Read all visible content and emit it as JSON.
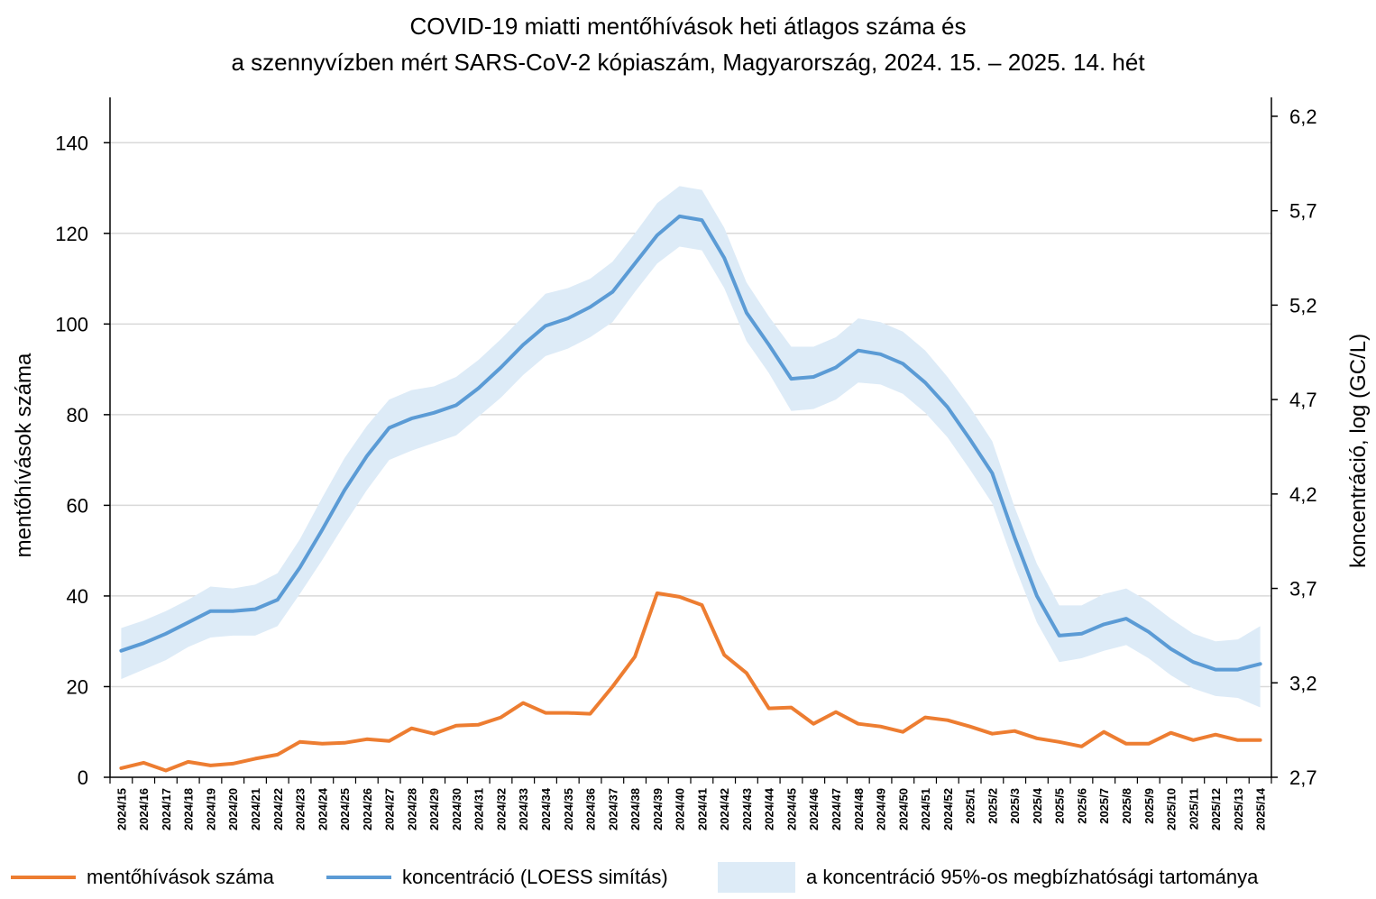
{
  "title_line1": "COVID-19 miatti mentőhívások heti átlagos száma és",
  "title_line2": "a szennyvízben mért SARS-CoV-2 kópiaszám, Magyarország, 2024. 15. – 2025. 14. hét",
  "colors": {
    "calls": "#ED7D31",
    "concentration": "#5B9BD5",
    "band": "#DDEBF7",
    "grid": "#D9D9D9",
    "axis": "#000000"
  },
  "chart_data": {
    "type": "line",
    "x": [
      "2024/15",
      "2024/16",
      "2024/17",
      "2024/18",
      "2024/19",
      "2024/20",
      "2024/21",
      "2024/22",
      "2024/23",
      "2024/24",
      "2024/25",
      "2024/26",
      "2024/27",
      "2024/28",
      "2024/29",
      "2024/30",
      "2024/31",
      "2024/32",
      "2024/33",
      "2024/34",
      "2024/35",
      "2024/36",
      "2024/37",
      "2024/38",
      "2024/39",
      "2024/40",
      "2024/41",
      "2024/42",
      "2024/43",
      "2024/44",
      "2024/45",
      "2024/46",
      "2024/47",
      "2024/48",
      "2024/49",
      "2024/50",
      "2024/51",
      "2024/52",
      "2025/1",
      "2025/2",
      "2025/3",
      "2025/4",
      "2025/5",
      "2025/6",
      "2025/7",
      "2025/8",
      "2025/9",
      "2025/10",
      "2025/11",
      "2025/12",
      "2025/13",
      "2025/14"
    ],
    "ylabel": "mentőhívások száma",
    "y2label": "koncentráció, log (GC/L)",
    "ylim": [
      0,
      150
    ],
    "yticks": [
      "0",
      "20",
      "40",
      "60",
      "80",
      "100",
      "120",
      "140"
    ],
    "y2lim": [
      2.7,
      6.3
    ],
    "y2ticks": [
      "2,7",
      "3,2",
      "3,7",
      "4,2",
      "4,7",
      "5,2",
      "5,7",
      "6,2"
    ],
    "grid": true,
    "legend_position": "bottom",
    "series": [
      {
        "name": "mentőhívások száma",
        "axis": "left",
        "values": [
          2.0,
          3.2,
          1.5,
          3.4,
          2.6,
          3.0,
          4.1,
          5.0,
          7.8,
          7.4,
          7.6,
          8.4,
          8.0,
          10.8,
          9.6,
          11.4,
          11.6,
          13.2,
          16.4,
          14.2,
          14.2,
          14.0,
          20.0,
          26.6,
          40.6,
          39.8,
          38.0,
          27.0,
          23.0,
          15.2,
          15.4,
          11.8,
          14.4,
          11.8,
          11.2,
          10.0,
          13.2,
          12.6,
          11.2,
          9.6,
          10.2,
          8.6,
          7.8,
          6.8,
          10.0,
          7.4,
          7.4,
          9.8,
          8.2,
          9.4,
          8.2,
          8.2
        ]
      },
      {
        "name": "koncentráció (LOESS simítás)",
        "axis": "right",
        "values": [
          3.37,
          3.41,
          3.46,
          3.52,
          3.58,
          3.58,
          3.59,
          3.64,
          3.81,
          4.01,
          4.22,
          4.4,
          4.55,
          4.6,
          4.63,
          4.67,
          4.76,
          4.87,
          4.99,
          5.09,
          5.13,
          5.19,
          5.27,
          5.42,
          5.57,
          5.67,
          5.65,
          5.45,
          5.16,
          4.99,
          4.81,
          4.82,
          4.87,
          4.96,
          4.94,
          4.89,
          4.79,
          4.66,
          4.49,
          4.31,
          3.97,
          3.66,
          3.45,
          3.46,
          3.51,
          3.54,
          3.47,
          3.38,
          3.31,
          3.27,
          3.27,
          3.3
        ]
      },
      {
        "name": "a koncentráció 95%-os megbízhatósági tartománya",
        "axis": "right",
        "upper": [
          3.49,
          3.53,
          3.58,
          3.64,
          3.71,
          3.7,
          3.72,
          3.78,
          3.96,
          4.18,
          4.39,
          4.56,
          4.7,
          4.75,
          4.77,
          4.82,
          4.91,
          5.02,
          5.14,
          5.26,
          5.29,
          5.34,
          5.43,
          5.58,
          5.74,
          5.83,
          5.81,
          5.61,
          5.32,
          5.14,
          4.98,
          4.98,
          5.03,
          5.13,
          5.11,
          5.06,
          4.96,
          4.82,
          4.66,
          4.48,
          4.13,
          3.83,
          3.61,
          3.61,
          3.67,
          3.7,
          3.63,
          3.54,
          3.46,
          3.42,
          3.43,
          3.5
        ],
        "lower": [
          3.22,
          3.27,
          3.32,
          3.39,
          3.44,
          3.45,
          3.45,
          3.5,
          3.67,
          3.85,
          4.04,
          4.22,
          4.38,
          4.43,
          4.47,
          4.51,
          4.61,
          4.71,
          4.83,
          4.93,
          4.97,
          5.03,
          5.11,
          5.27,
          5.42,
          5.51,
          5.49,
          5.29,
          5.01,
          4.84,
          4.64,
          4.65,
          4.7,
          4.79,
          4.78,
          4.73,
          4.63,
          4.5,
          4.33,
          4.15,
          3.82,
          3.52,
          3.31,
          3.33,
          3.37,
          3.4,
          3.33,
          3.24,
          3.17,
          3.13,
          3.12,
          3.07
        ]
      }
    ]
  }
}
